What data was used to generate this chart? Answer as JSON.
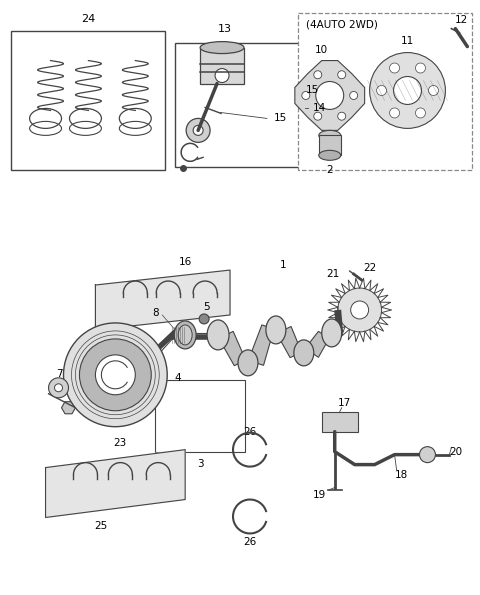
{
  "background_color": "#ffffff",
  "line_color": "#444444",
  "text_color": "#000000",
  "fig_width": 4.8,
  "fig_height": 5.95,
  "dpi": 100
}
